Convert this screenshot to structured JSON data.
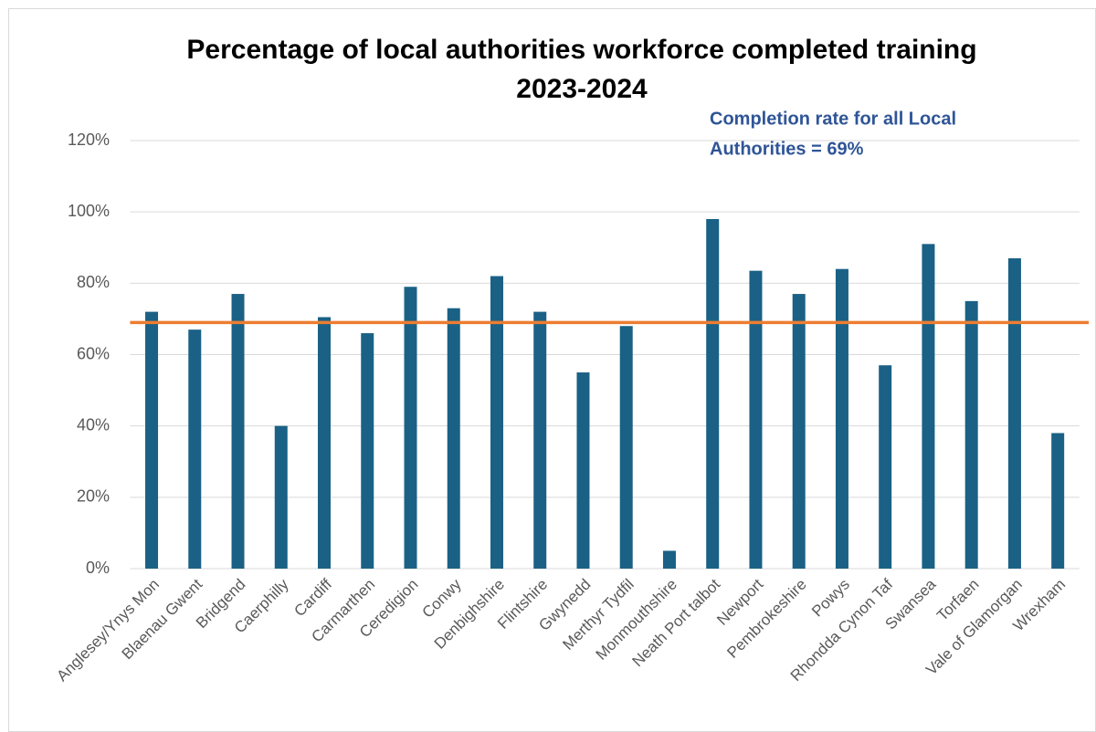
{
  "chart_data": {
    "type": "bar",
    "title": [
      "Percentage of local authorities workforce completed training",
      "2023-2024"
    ],
    "categories": [
      "Anglesey/Ynys Mon",
      "Blaenau Gwent",
      "Bridgend",
      "Caerphilly",
      "Cardiff",
      "Carmarthen",
      "Ceredigion",
      "Conwy",
      "Denbighshire",
      "Flintshire",
      "Gwynedd",
      "Merthyr Tydfil",
      "Monmouthshire",
      "Neath Port talbot",
      "Newport",
      "Pembrokeshire",
      "Powys",
      "Rhondda Cynon Taf",
      "Swansea",
      "Torfaen",
      "Vale of Glamorgan",
      "Wrexham"
    ],
    "values": [
      72,
      67,
      77,
      40,
      70.5,
      66,
      79,
      73,
      82,
      72,
      55,
      68,
      5,
      98,
      83.5,
      77,
      84,
      57,
      91,
      75,
      87,
      38
    ],
    "color": "#1a6185",
    "ylim": [
      0,
      120
    ],
    "yticks": [
      {
        "value": 0,
        "label": "0%"
      },
      {
        "value": 20,
        "label": "20%"
      },
      {
        "value": 40,
        "label": "40%"
      },
      {
        "value": 60,
        "label": "60%"
      },
      {
        "value": 80,
        "label": "80%"
      },
      {
        "value": 100,
        "label": "100%"
      },
      {
        "value": 120,
        "label": "120%"
      }
    ],
    "grid": true,
    "reference_line": {
      "value": 69,
      "color": "#ed7d31"
    },
    "annotation": [
      "Completion rate for all Local",
      "Authorities = 69%"
    ]
  }
}
